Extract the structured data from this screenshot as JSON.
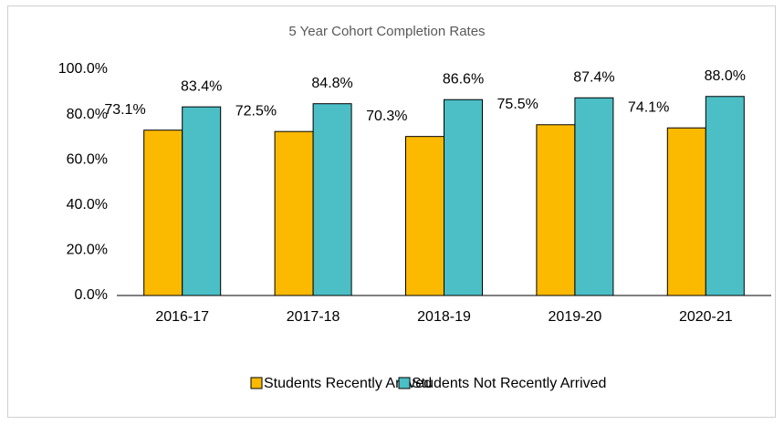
{
  "chart_data": {
    "type": "bar",
    "title": "5 Year Cohort Completion Rates",
    "categories": [
      "2016-17",
      "2017-18",
      "2018-19",
      "2019-20",
      "2020-21"
    ],
    "series": [
      {
        "name": "Students Recently Arrived",
        "color": "#fbba00",
        "values": [
          73.1,
          72.5,
          70.3,
          75.5,
          74.1
        ],
        "value_labels": [
          "73.1%",
          "72.5%",
          "70.3%",
          "75.5%",
          "74.1%"
        ]
      },
      {
        "name": "Students Not Recently Arrived",
        "color": "#4bbec6",
        "values": [
          83.4,
          84.8,
          86.6,
          87.4,
          88.0
        ],
        "value_labels": [
          "83.4%",
          "84.8%",
          "86.6%",
          "87.4%",
          "88.0%"
        ]
      }
    ],
    "ylim": [
      0,
      100
    ],
    "yticks": [
      {
        "value": 0,
        "label": "0.0%"
      },
      {
        "value": 20,
        "label": "20.0%"
      },
      {
        "value": 40,
        "label": "40.0%"
      },
      {
        "value": 60,
        "label": "60.0%"
      },
      {
        "value": 80,
        "label": "80.0%"
      },
      {
        "value": 100,
        "label": "100.0%"
      }
    ],
    "legend": "bottom"
  }
}
